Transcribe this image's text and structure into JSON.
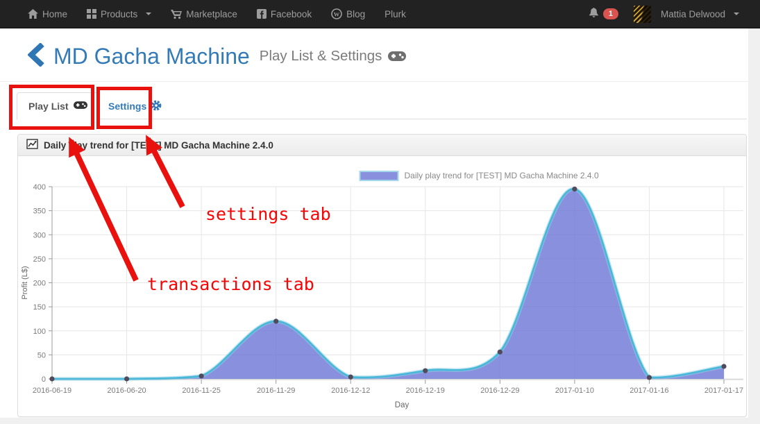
{
  "navbar": {
    "items": [
      {
        "label": "Home",
        "icon": "home-icon"
      },
      {
        "label": "Products",
        "icon": "grid-icon",
        "has_caret": true
      },
      {
        "label": "Marketplace",
        "icon": "cart-icon"
      },
      {
        "label": "Facebook",
        "icon": "facebook-icon"
      },
      {
        "label": "Blog",
        "icon": "wordpress-icon"
      },
      {
        "label": "Plurk"
      }
    ],
    "notification_count": "1",
    "user_name": "Mattia Delwood"
  },
  "header": {
    "title": "MD Gacha Machine",
    "subtitle": "Play List & Settings"
  },
  "tabs": [
    {
      "label": "Play List",
      "icon": "gamepad-icon",
      "active": true
    },
    {
      "label": "Settings",
      "icon": "gear-icon",
      "active": false
    }
  ],
  "annotations": {
    "settings_label": "settings tab",
    "transactions_label": "transactions tab",
    "annotation_color": "#e8110d"
  },
  "panel": {
    "title": "Daily play trend for [TEST] MD Gacha Machine 2.4.0"
  },
  "chart_data": {
    "type": "area",
    "legend_label": "Daily play trend for [TEST] MD Gacha Machine 2.4.0",
    "categories": [
      "2016-06-19",
      "2016-06-20",
      "2016-11-25",
      "2016-11-29",
      "2016-12-12",
      "2016-12-19",
      "2016-12-29",
      "2017-01-10",
      "2017-01-16",
      "2017-01-17"
    ],
    "values": [
      0,
      0,
      6,
      120,
      4,
      17,
      56,
      395,
      3,
      26
    ],
    "xlabel": "Day",
    "ylabel": "Profit (L$)",
    "ylim": [
      0,
      400
    ],
    "yticks": [
      0,
      50,
      100,
      150,
      200,
      250,
      300,
      350,
      400
    ],
    "grid": true,
    "legend_position": "top",
    "colors": {
      "fill": "rgba(108,116,214,0.8)",
      "line": "#47b8d8",
      "line_glow": "rgba(140,205,228,0.55)",
      "point": "#514a5a",
      "grid": "#e6e6e6",
      "axis": "#999999",
      "tick_text": "#7a7a7a",
      "axis_title": "#666666",
      "legend_text": "#888888",
      "legend_swatch_border": "#a3d7ea"
    }
  }
}
